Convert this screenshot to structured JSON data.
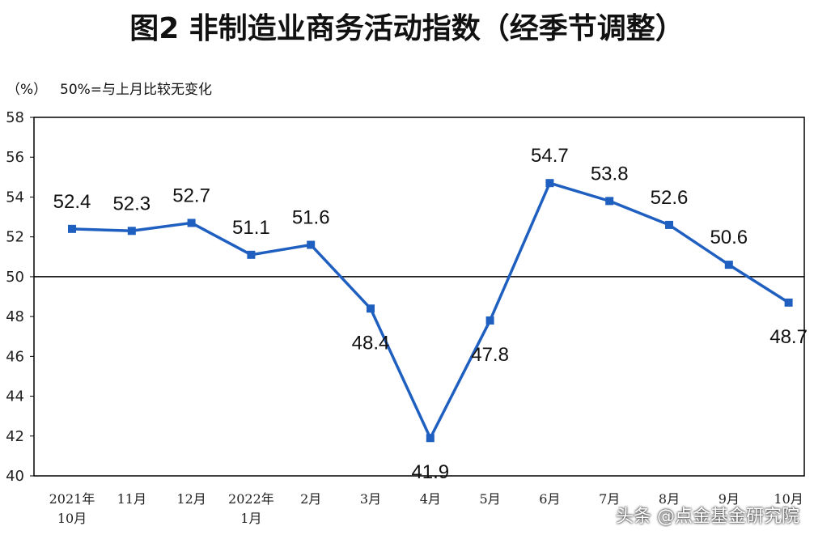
{
  "header": {
    "title": "图2  非制造业商务活动指数（经季节调整）",
    "unit": "（%）",
    "note": "50%=与上月比较无变化"
  },
  "watermark": "头条 @点金基金研究院",
  "chart_data": {
    "type": "line",
    "title": "图2  非制造业商务活动指数（经季节调整）",
    "ylabel": "（%）",
    "xlabel": "",
    "ylim": [
      40,
      58
    ],
    "yticks": [
      "40",
      "42",
      "44",
      "46",
      "48",
      "50",
      "52",
      "54",
      "56",
      "58"
    ],
    "reference_line": 50,
    "categories": [
      [
        "2021年",
        "10月"
      ],
      [
        "11月"
      ],
      [
        "12月"
      ],
      [
        "2022年",
        "1月"
      ],
      [
        "2月"
      ],
      [
        "3月"
      ],
      [
        "4月"
      ],
      [
        "5月"
      ],
      [
        "6月"
      ],
      [
        "7月"
      ],
      [
        "8月"
      ],
      [
        "9月"
      ],
      [
        "10月"
      ]
    ],
    "series": [
      {
        "values": [
          52.4,
          52.3,
          52.7,
          51.1,
          51.6,
          48.4,
          41.9,
          47.8,
          54.7,
          53.8,
          52.6,
          50.6,
          48.7
        ],
        "labels": [
          "52.4",
          "52.3",
          "52.7",
          "51.1",
          "51.6",
          "48.4",
          "41.9",
          "47.8",
          "54.7",
          "53.8",
          "52.6",
          "50.6",
          "48.7"
        ],
        "label_position": [
          "above",
          "above",
          "above",
          "above",
          "above",
          "below",
          "below",
          "below",
          "above",
          "above",
          "above",
          "above",
          "below"
        ],
        "color": "#1f5fc0"
      }
    ],
    "grid": false,
    "legend": "none"
  }
}
